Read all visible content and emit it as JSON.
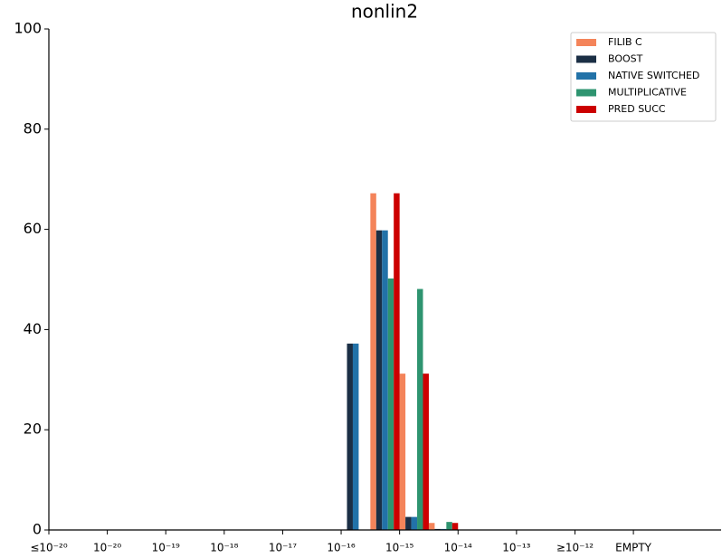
{
  "chart_data": {
    "type": "bar",
    "title": "nonlin2",
    "categories": [
      "≤10⁻²⁰",
      null,
      "10⁻²⁰",
      null,
      "10⁻¹⁹",
      null,
      "10⁻¹⁸",
      null,
      "10⁻¹⁷",
      null,
      "10⁻¹⁶",
      null,
      "10⁻¹⁵",
      null,
      "10⁻¹⁴",
      null,
      "10⁻¹³",
      null,
      "≥10⁻¹²",
      null,
      "EMPTY",
      null,
      null
    ],
    "series": [
      {
        "name": "FILIB C",
        "color": "#f4845a",
        "values": [
          0,
          0,
          0,
          0,
          0,
          0,
          0,
          0,
          0,
          0,
          0,
          67.2,
          31.2,
          1.4,
          0,
          0,
          0,
          0,
          0,
          0,
          0,
          0,
          0
        ]
      },
      {
        "name": "BOOST",
        "color": "#1b2f45",
        "values": [
          0,
          0,
          0,
          0,
          0,
          0,
          0,
          0,
          0,
          0,
          37.2,
          59.8,
          2.6,
          0.2,
          0,
          0,
          0,
          0,
          0,
          0,
          0,
          0,
          0
        ]
      },
      {
        "name": "NATIVE SWITCHED",
        "color": "#2272a8",
        "values": [
          0,
          0,
          0,
          0,
          0,
          0,
          0,
          0,
          0,
          0,
          37.2,
          59.8,
          2.6,
          0.2,
          0,
          0,
          0,
          0,
          0,
          0,
          0,
          0,
          0
        ]
      },
      {
        "name": "MULTIPLICATIVE",
        "color": "#2e9470",
        "values": [
          0,
          0,
          0,
          0,
          0,
          0,
          0,
          0,
          0,
          0,
          0,
          50.2,
          48.1,
          1.6,
          0,
          0,
          0,
          0,
          0,
          0,
          0,
          0,
          0
        ]
      },
      {
        "name": "PRED SUCC",
        "color": "#cc0000",
        "values": [
          0,
          0,
          0,
          0,
          0,
          0,
          0,
          0,
          0,
          0,
          0,
          67.2,
          31.2,
          1.4,
          0,
          0,
          0,
          0,
          0,
          0,
          0,
          0,
          0
        ]
      }
    ],
    "ylim": [
      0,
      100
    ],
    "yticks": [
      0,
      20,
      40,
      60,
      80,
      100
    ],
    "grid": false,
    "legend": "upper right"
  }
}
